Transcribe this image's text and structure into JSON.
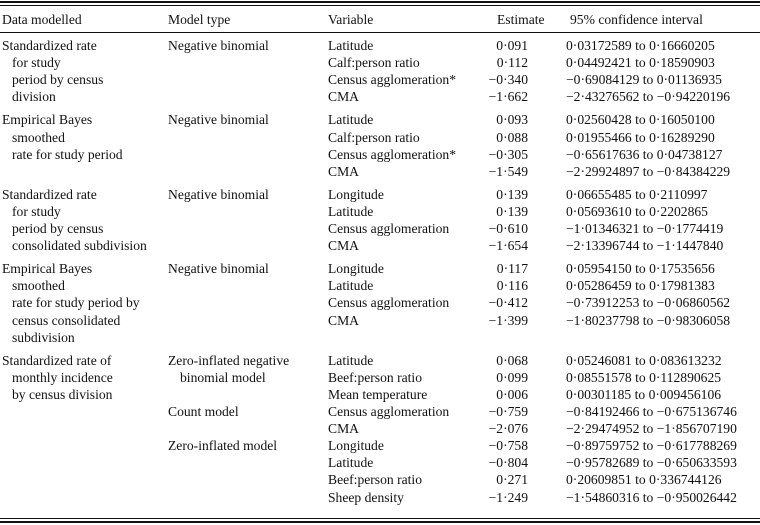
{
  "headers": {
    "data_modelled": "Data modelled",
    "model_type": "Model type",
    "variable": "Variable",
    "estimate": "Estimate",
    "ci": "95% confidence interval"
  },
  "groups": [
    {
      "data_modelled": [
        "Standardized rate",
        "for study",
        "period by census",
        "division"
      ],
      "model_types": [
        {
          "row": 0,
          "lines": [
            "Negative binomial"
          ]
        }
      ],
      "rows": [
        {
          "variable": "Latitude",
          "estimate": "0·091",
          "ci": "0·03172589 to 0·16660205"
        },
        {
          "variable": "Calf:person ratio",
          "estimate": "0·112",
          "ci": "0·04492421 to 0·18590903"
        },
        {
          "variable": "Census agglomeration*",
          "estimate": "−0·340",
          "ci": "−0·69084129 to 0·01136935"
        },
        {
          "variable": "CMA",
          "estimate": "−1·662",
          "ci": "−2·43276562 to −0·94220196"
        }
      ]
    },
    {
      "data_modelled": [
        "Empirical Bayes",
        "smoothed",
        "rate for study period"
      ],
      "model_types": [
        {
          "row": 0,
          "lines": [
            "Negative binomial"
          ]
        }
      ],
      "rows": [
        {
          "variable": "Latitude",
          "estimate": "0·093",
          "ci": "0·02560428 to 0·16050100"
        },
        {
          "variable": "Calf:person ratio",
          "estimate": "0·088",
          "ci": "0·01955466 to 0·16289290"
        },
        {
          "variable": "Census agglomeration*",
          "estimate": "−0·305",
          "ci": "−0·65617636 to 0·04738127"
        },
        {
          "variable": "CMA",
          "estimate": "−1·549",
          "ci": "−2·29924897 to −0·84384229"
        }
      ]
    },
    {
      "data_modelled": [
        "Standardized rate",
        "for study",
        "period by census",
        "consolidated subdivision"
      ],
      "model_types": [
        {
          "row": 0,
          "lines": [
            "Negative binomial"
          ]
        }
      ],
      "rows": [
        {
          "variable": "Longitude",
          "estimate": "0·139",
          "ci": "0·06655485 to 0·2110997"
        },
        {
          "variable": "Latitude",
          "estimate": "0·139",
          "ci": "0·05693610 to 0·2202865"
        },
        {
          "variable": "Census agglomeration",
          "estimate": "−0·610",
          "ci": "−1·01346321 to −0·1774419"
        },
        {
          "variable": "CMA",
          "estimate": "−1·654",
          "ci": "−2·13396744 to −1·1447840"
        }
      ]
    },
    {
      "data_modelled": [
        "Empirical Bayes",
        "smoothed",
        "rate for study period by",
        "census consolidated",
        "subdivision"
      ],
      "model_types": [
        {
          "row": 0,
          "lines": [
            "Negative binomial"
          ]
        }
      ],
      "rows": [
        {
          "variable": "Longitude",
          "estimate": "0·117",
          "ci": "0·05954150 to 0·17535656"
        },
        {
          "variable": "Latitude",
          "estimate": "0·116",
          "ci": "0·05286459 to 0·17981383"
        },
        {
          "variable": "Census agglomeration",
          "estimate": "−0·412",
          "ci": "−0·73912253 to −0·06860562"
        },
        {
          "variable": "CMA",
          "estimate": "−1·399",
          "ci": "−1·80237798 to −0·98306058"
        }
      ]
    },
    {
      "data_modelled": [
        "Standardized rate of",
        "monthly incidence",
        "by census division"
      ],
      "model_types": [
        {
          "row": 0,
          "lines": [
            "Zero-inflated negative",
            "binomial model"
          ]
        },
        {
          "row": 3,
          "lines": [
            "Count model"
          ]
        },
        {
          "row": 5,
          "lines": [
            "Zero-inflated model"
          ]
        }
      ],
      "rows": [
        {
          "variable": "Latitude",
          "estimate": "0·068",
          "ci": "0·05246081 to 0·083613232"
        },
        {
          "variable": "Beef:person ratio",
          "estimate": "0·099",
          "ci": "0·08551578 to 0·112890625"
        },
        {
          "variable": "Mean temperature",
          "estimate": "0·006",
          "ci": "0·00301185 to 0·009456106"
        },
        {
          "variable": "Census agglomeration",
          "estimate": "−0·759",
          "ci": "−0·84192466 to −0·675136746"
        },
        {
          "variable": "CMA",
          "estimate": "−2·076",
          "ci": "−2·29474952 to −1·856707190"
        },
        {
          "variable": "Longitude",
          "estimate": "−0·758",
          "ci": "−0·89759752 to −0·617788269"
        },
        {
          "variable": "Latitude",
          "estimate": "−0·804",
          "ci": "−0·95782689 to −0·650633593"
        },
        {
          "variable": "Beef:person ratio",
          "estimate": "0·271",
          "ci": "0·20609851 to 0·336744126"
        },
        {
          "variable": "Sheep density",
          "estimate": "−1·249",
          "ci": "−1·54860316 to −0·950026442"
        }
      ]
    }
  ]
}
